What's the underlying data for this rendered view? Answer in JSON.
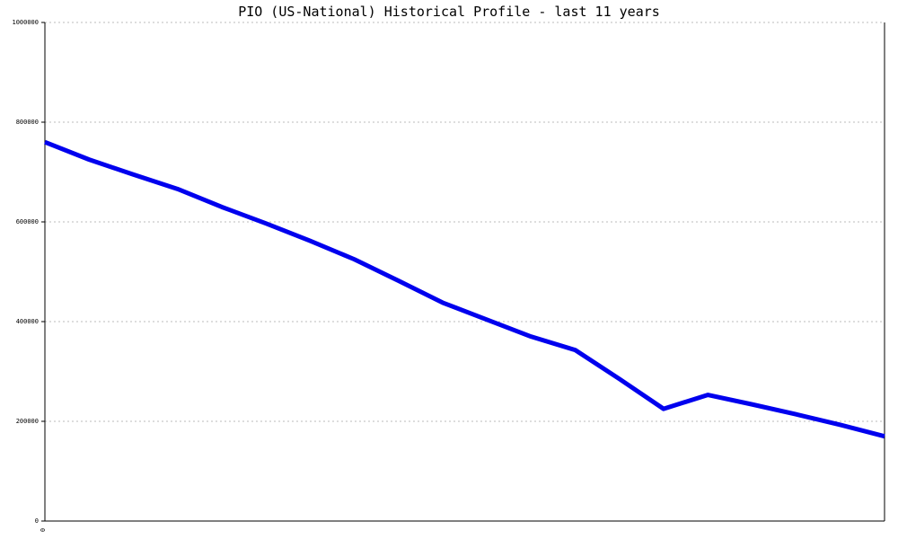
{
  "chart_data": {
    "type": "line",
    "title": "PIO (US-National) Historical Profile - last 11 years",
    "xlabel": "",
    "ylabel": "",
    "x_tick_labels": [
      "0"
    ],
    "y_tick_labels": [
      "0",
      "200000",
      "400000",
      "600000",
      "800000",
      "1000000"
    ],
    "ylim": [
      0,
      1000000
    ],
    "grid": true,
    "series": [
      {
        "color": "#0000ee",
        "values": [
          760000,
          725000,
          695000,
          666000,
          630000,
          597000,
          562000,
          525000,
          482000,
          438000,
          404000,
          370000,
          343000,
          285000,
          225000,
          253000,
          234000,
          214000,
          193000,
          170000
        ]
      }
    ]
  }
}
